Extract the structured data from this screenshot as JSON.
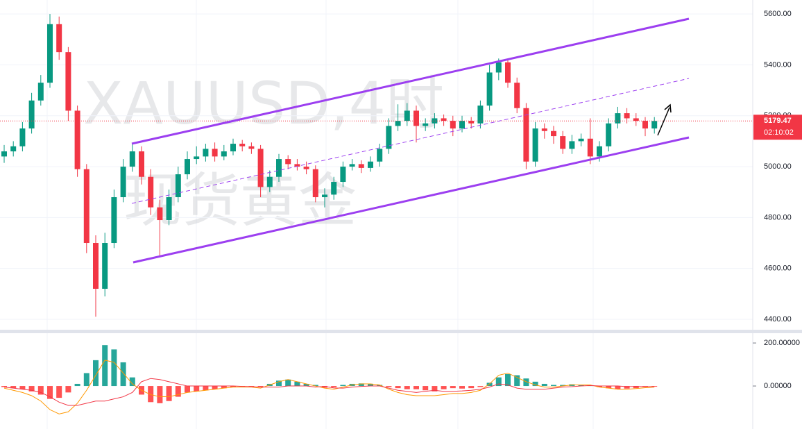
{
  "chart_data": {
    "type": "candlestick",
    "watermark": [
      "XAUUSD,4时",
      "现货黄金"
    ],
    "countdown": "02:10:02",
    "up_color": "#089981",
    "down_color": "#f23645",
    "open": [
      5040,
      5060,
      5080,
      5150,
      5260,
      5330,
      5560,
      5450,
      5220,
      4990,
      4700,
      4520,
      4700,
      4880,
      5000,
      5060,
      4960,
      4840,
      4790,
      4880,
      4970,
      5030,
      5040,
      5070,
      5040,
      5060,
      5090,
      5080,
      5070,
      4920,
      4960,
      5030,
      5010,
      5000,
      4990,
      4880,
      4890,
      4940,
      5000,
      5010,
      4995,
      5020,
      5070,
      5160,
      5180,
      5220,
      5160,
      5170,
      5190,
      5180,
      5150,
      5180,
      5170,
      5240,
      5370,
      5410,
      5330,
      5230,
      5020,
      5150,
      5140,
      5120,
      5070,
      5100,
      5110,
      5040,
      5080,
      5170,
      5210,
      5190,
      5180,
      5150
    ],
    "high": [
      5085,
      5100,
      5175,
      5290,
      5360,
      5600,
      5590,
      5470,
      5240,
      5010,
      4730,
      4740,
      4910,
      5030,
      5090,
      5080,
      4990,
      4870,
      4910,
      5000,
      5060,
      5080,
      5090,
      5095,
      5085,
      5110,
      5105,
      5095,
      5085,
      4985,
      5050,
      5045,
      5030,
      5020,
      5005,
      4915,
      4960,
      5020,
      5030,
      5025,
      5040,
      5090,
      5190,
      5245,
      5250,
      5240,
      5190,
      5210,
      5205,
      5200,
      5200,
      5195,
      5260,
      5400,
      5425,
      5420,
      5350,
      5250,
      5175,
      5170,
      5160,
      5140,
      5125,
      5130,
      5190,
      5100,
      5190,
      5235,
      5230,
      5210,
      5195,
      5195
    ],
    "low": [
      5015,
      5040,
      5060,
      5130,
      5240,
      5310,
      5420,
      5180,
      4960,
      4660,
      4410,
      4490,
      4680,
      4860,
      4980,
      4930,
      4810,
      4650,
      4770,
      4860,
      4950,
      5010,
      5020,
      5020,
      5025,
      5045,
      5060,
      5050,
      4880,
      4900,
      4940,
      4990,
      4985,
      4970,
      4860,
      4840,
      4870,
      4920,
      4985,
      4975,
      4980,
      5000,
      5050,
      5140,
      5160,
      5095,
      5140,
      5150,
      5160,
      5120,
      5135,
      5150,
      5150,
      5220,
      5340,
      5310,
      5210,
      4990,
      5000,
      5110,
      5090,
      5050,
      5050,
      5080,
      5010,
      5020,
      5060,
      5150,
      5170,
      5160,
      5120,
      5130
    ],
    "close": [
      5060,
      5080,
      5150,
      5260,
      5330,
      5560,
      5450,
      5220,
      4990,
      4700,
      4520,
      4700,
      4880,
      5000,
      5060,
      4960,
      4840,
      4790,
      4880,
      4970,
      5030,
      5040,
      5070,
      5040,
      5060,
      5090,
      5080,
      5070,
      4920,
      4960,
      5030,
      5010,
      5000,
      4990,
      4880,
      4890,
      4940,
      5000,
      5010,
      4995,
      5020,
      5070,
      5160,
      5180,
      5220,
      5160,
      5170,
      5190,
      5180,
      5150,
      5180,
      5170,
      5240,
      5370,
      5410,
      5330,
      5230,
      5020,
      5150,
      5140,
      5120,
      5070,
      5100,
      5110,
      5040,
      5080,
      5170,
      5210,
      5190,
      5180,
      5150,
      5179.47
    ],
    "ylim": [
      4359,
      5655
    ],
    "yticks": [
      {
        "value": 5600,
        "label": "5600.00"
      },
      {
        "value": 5400,
        "label": "5400.00"
      },
      {
        "value": 5200,
        "label": "5200.00"
      },
      {
        "value": 5000,
        "label": "5000.00"
      },
      {
        "value": 4800,
        "label": "4800.00"
      },
      {
        "value": 4600,
        "label": "4600.00"
      },
      {
        "value": 4400,
        "label": "4400.00"
      }
    ],
    "grid": true,
    "indicator": {
      "type": "macd",
      "histogram": [
        -5,
        -10,
        -15,
        -25,
        -40,
        -60,
        -55,
        -30,
        10,
        60,
        120,
        190,
        170,
        110,
        40,
        -40,
        -75,
        -80,
        -70,
        -50,
        -30,
        -25,
        -20,
        -15,
        -10,
        -5,
        -3,
        -2,
        -5,
        10,
        25,
        30,
        20,
        10,
        5,
        -8,
        -6,
        5,
        10,
        12,
        10,
        5,
        -5,
        -10,
        -15,
        -15,
        -20,
        -25,
        -15,
        -10,
        -12,
        -10,
        -5,
        15,
        40,
        55,
        50,
        35,
        20,
        10,
        5,
        5,
        8,
        5,
        3,
        -5,
        -10,
        -15,
        -12,
        -10,
        -5,
        -2
      ],
      "macd": [
        -10,
        -20,
        -30,
        -45,
        -70,
        -110,
        -130,
        -120,
        -80,
        -20,
        50,
        120,
        110,
        60,
        10,
        -20,
        -40,
        -50,
        -50,
        -40,
        -30,
        -25,
        -20,
        -15,
        -10,
        -5,
        -5,
        -5,
        -10,
        5,
        20,
        30,
        20,
        10,
        0,
        -10,
        -15,
        -5,
        5,
        10,
        10,
        5,
        -15,
        -30,
        -40,
        -45,
        -45,
        -45,
        -40,
        -35,
        -35,
        -30,
        -20,
        10,
        50,
        60,
        40,
        20,
        5,
        -5,
        -5,
        0,
        5,
        5,
        5,
        -5,
        -10,
        -15,
        -15,
        -12,
        -8,
        -5
      ],
      "signal": [
        -5,
        -10,
        -15,
        -20,
        -30,
        -50,
        -75,
        -90,
        -90,
        -80,
        -70,
        -70,
        -60,
        -50,
        -30,
        20,
        35,
        30,
        20,
        10,
        0,
        0,
        0,
        0,
        0,
        0,
        -2,
        -3,
        -5,
        -5,
        -5,
        0,
        0,
        0,
        -5,
        -2,
        -9,
        -10,
        -5,
        -2,
        0,
        0,
        -10,
        -20,
        -25,
        -30,
        -25,
        -20,
        -25,
        -25,
        -23,
        -20,
        -15,
        -5,
        10,
        5,
        -10,
        -15,
        -15,
        -15,
        -10,
        -5,
        -3,
        0,
        2,
        0,
        0,
        0,
        -3,
        -2,
        -3,
        -3
      ],
      "hist_up_color": "#26a69a",
      "hist_down_color": "#ff5252",
      "macd_color": "#ff9800",
      "signal_color": "#f23645",
      "ylim": [
        -187,
        239
      ],
      "yticks": [
        {
          "value": 200,
          "label": "200.00000"
        },
        {
          "value": 0,
          "label": "0.00000"
        }
      ]
    }
  }
}
